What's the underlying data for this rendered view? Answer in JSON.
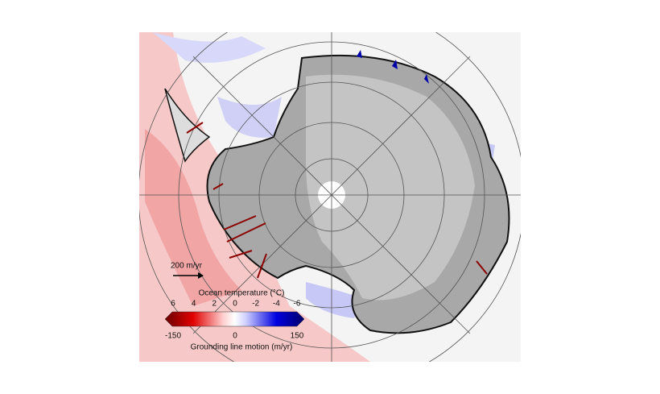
{
  "legend": {
    "scale_label": "200 m/yr",
    "temperature": {
      "title": "Ocean temperature (°C)",
      "ticks": [
        6,
        4,
        2,
        0,
        -2,
        -4,
        -6
      ]
    },
    "motion": {
      "title": "Grounding line motion (m/yr)",
      "ticks": [
        -150,
        0,
        150
      ]
    }
  }
}
